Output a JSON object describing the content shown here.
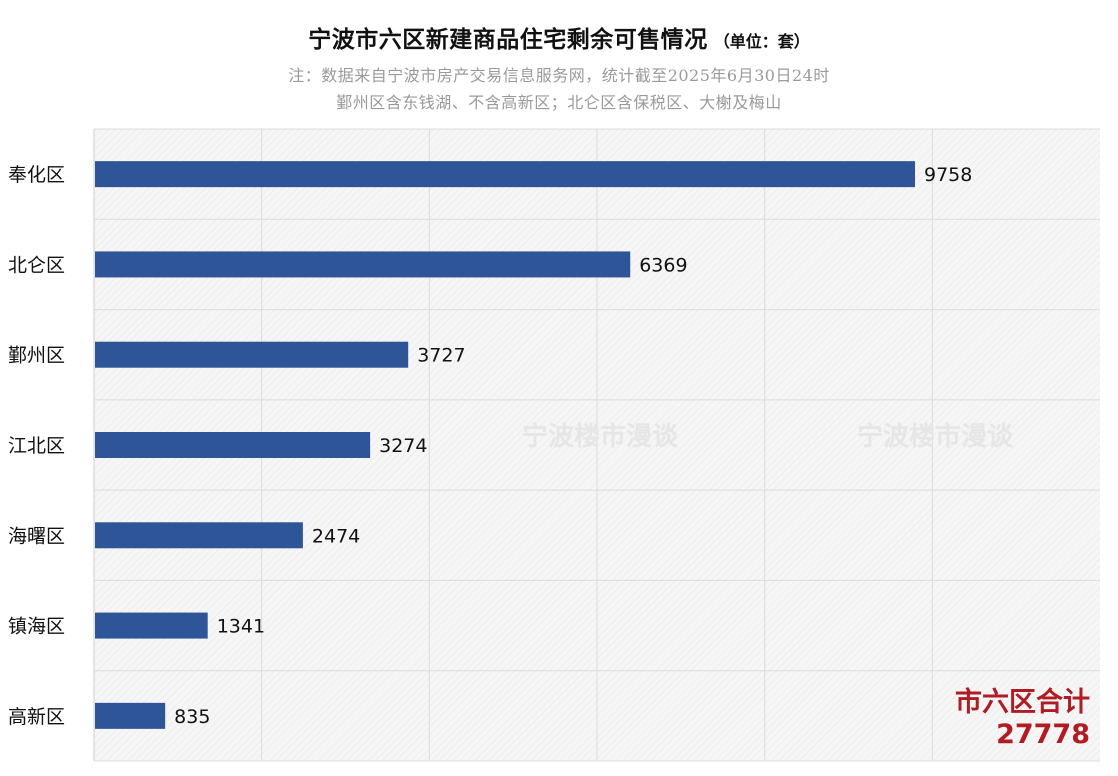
{
  "title": "宁波市六区新建商品住宅剩余可售情况",
  "unit": "（单位：套）",
  "notes": [
    "注：数据来自宁波市房产交易信息服务网，统计截至2025年6月30日24时",
    "鄞州区含东钱湖、不含高新区；北仑区含保税区、大榭及梅山"
  ],
  "watermark": "宁波楼市漫谈",
  "total": {
    "label": "市六区合计",
    "value": "27778"
  },
  "colors": {
    "bar": "#2e5597",
    "total": "#b01c24"
  },
  "chart_data": {
    "type": "bar",
    "orientation": "horizontal",
    "title": "宁波市六区新建商品住宅剩余可售情况",
    "categories": [
      "奉化区",
      "北仑区",
      "鄞州区",
      "江北区",
      "海曙区",
      "镇海区",
      "高新区"
    ],
    "values": [
      9758,
      6369,
      3727,
      3274,
      2474,
      1341,
      835
    ],
    "xlim": [
      0,
      12000
    ],
    "grid": true,
    "data_labels": true
  }
}
